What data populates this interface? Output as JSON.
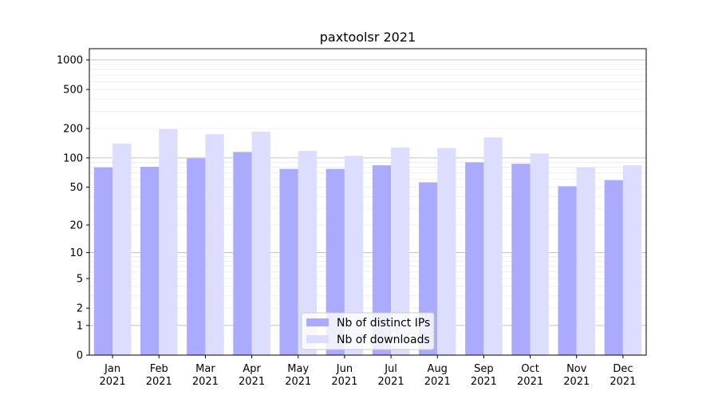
{
  "chart_data": {
    "type": "bar",
    "title": "paxtoolsr 2021",
    "xlabel": "",
    "ylabel": "",
    "y_scale": "symlog",
    "ylim": [
      0,
      1300
    ],
    "y_ticks": [
      0,
      1,
      2,
      5,
      10,
      20,
      50,
      100,
      200,
      500,
      1000
    ],
    "grid": "horizontal",
    "legend_position": "bottom-center",
    "categories": [
      [
        "Jan",
        "2021"
      ],
      [
        "Feb",
        "2021"
      ],
      [
        "Mar",
        "2021"
      ],
      [
        "Apr",
        "2021"
      ],
      [
        "May",
        "2021"
      ],
      [
        "Jun",
        "2021"
      ],
      [
        "Jul",
        "2021"
      ],
      [
        "Aug",
        "2021"
      ],
      [
        "Sep",
        "2021"
      ],
      [
        "Oct",
        "2021"
      ],
      [
        "Nov",
        "2021"
      ],
      [
        "Dec",
        "2021"
      ]
    ],
    "series": [
      {
        "name": "Nb of distinct IPs",
        "color": "#aaaaff",
        "values": [
          80,
          81,
          99,
          115,
          77,
          77,
          84,
          56,
          90,
          87,
          51,
          59
        ]
      },
      {
        "name": "Nb of downloads",
        "color": "#ddddff",
        "values": [
          140,
          197,
          175,
          185,
          118,
          105,
          128,
          126,
          162,
          111,
          80,
          84
        ]
      }
    ]
  }
}
